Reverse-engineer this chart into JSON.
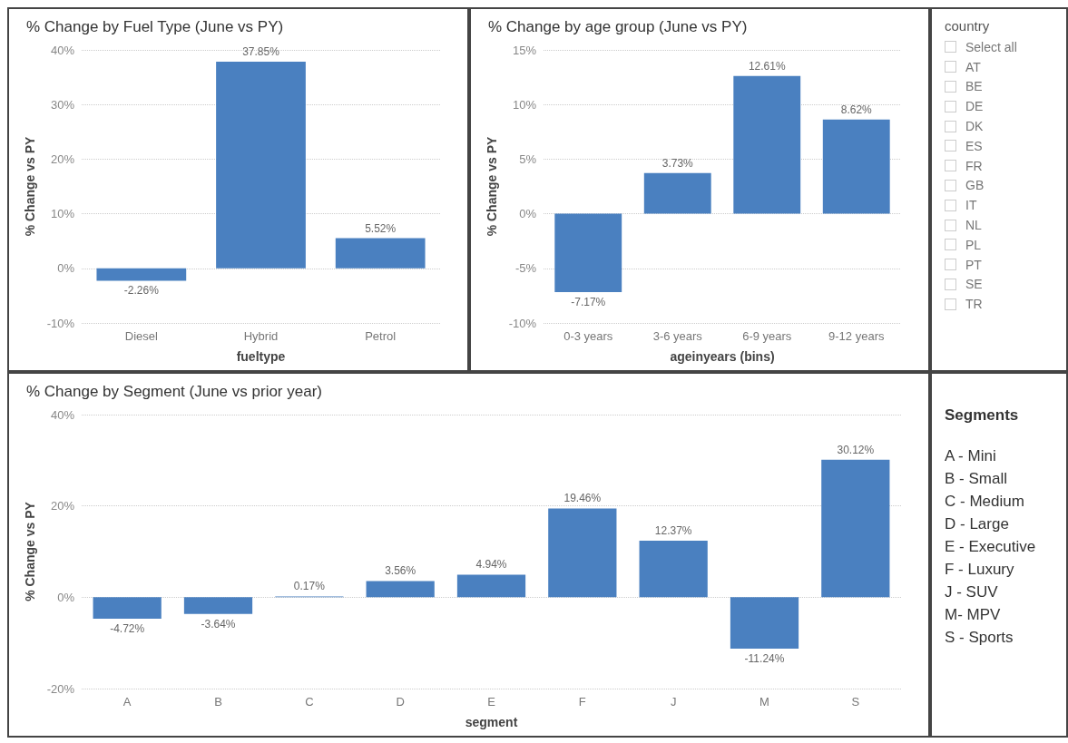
{
  "chart_data": [
    {
      "type": "bar",
      "title": "% Change by Fuel Type (June vs PY)",
      "xlabel": "fueltype",
      "ylabel": "% Change vs PY",
      "categories": [
        "Diesel",
        "Hybrid",
        "Petrol"
      ],
      "values": [
        -2.26,
        37.85,
        5.52
      ],
      "value_labels": [
        "-2.26%",
        "37.85%",
        "5.52%"
      ],
      "color": "#4a80c0",
      "ylim": [
        -10,
        40
      ],
      "yticks": [
        {
          "value": -10,
          "label": "-10%"
        },
        {
          "value": 0,
          "label": "0%"
        },
        {
          "value": 10,
          "label": "10%"
        },
        {
          "value": 20,
          "label": "20%"
        },
        {
          "value": 30,
          "label": "30%"
        },
        {
          "value": 40,
          "label": "40%"
        }
      ],
      "grid": "y"
    },
    {
      "type": "bar",
      "title": "% Change by age group (June vs PY)",
      "xlabel": "ageinyears (bins)",
      "ylabel": "% Change vs PY",
      "categories": [
        "0-3 years",
        "3-6 years",
        "6-9 years",
        "9-12 years"
      ],
      "values": [
        -7.17,
        3.73,
        12.61,
        8.62
      ],
      "value_labels": [
        "-7.17%",
        "3.73%",
        "12.61%",
        "8.62%"
      ],
      "color": "#4a80c0",
      "ylim": [
        -10,
        15
      ],
      "yticks": [
        {
          "value": -10,
          "label": "-10%"
        },
        {
          "value": -5,
          "label": "-5%"
        },
        {
          "value": 0,
          "label": "0%"
        },
        {
          "value": 5,
          "label": "5%"
        },
        {
          "value": 10,
          "label": "10%"
        },
        {
          "value": 15,
          "label": "15%"
        }
      ],
      "grid": "y"
    },
    {
      "type": "other",
      "title": "country",
      "annotations": [
        "Select all",
        "AT",
        "BE",
        "DE",
        "DK",
        "ES",
        "FR",
        "GB",
        "IT",
        "NL",
        "PL",
        "PT",
        "SE",
        "TR"
      ]
    },
    {
      "type": "bar",
      "title": "% Change by Segment (June vs prior year)",
      "xlabel": "segment",
      "ylabel": "% Change vs PY",
      "categories": [
        "A",
        "B",
        "C",
        "D",
        "E",
        "F",
        "J",
        "M",
        "S"
      ],
      "values": [
        -4.72,
        -3.64,
        0.17,
        3.56,
        4.94,
        19.46,
        12.37,
        -11.24,
        30.12
      ],
      "value_labels": [
        "-4.72%",
        "-3.64%",
        "0.17%",
        "3.56%",
        "4.94%",
        "19.46%",
        "12.37%",
        "-11.24%",
        "30.12%"
      ],
      "color": "#4a80c0",
      "ylim": [
        -20,
        40
      ],
      "yticks": [
        {
          "value": -20,
          "label": "-20%"
        },
        {
          "value": 0,
          "label": "0%"
        },
        {
          "value": 20,
          "label": "20%"
        },
        {
          "value": 40,
          "label": "40%"
        }
      ],
      "grid": "y"
    },
    {
      "type": "other",
      "title": "Segments",
      "annotations": [
        "A - Mini",
        "B - Small",
        "C - Medium",
        "D - Large",
        "E - Executive",
        "F - Luxury",
        "J - SUV",
        "M- MPV",
        "S - Sports"
      ]
    }
  ]
}
